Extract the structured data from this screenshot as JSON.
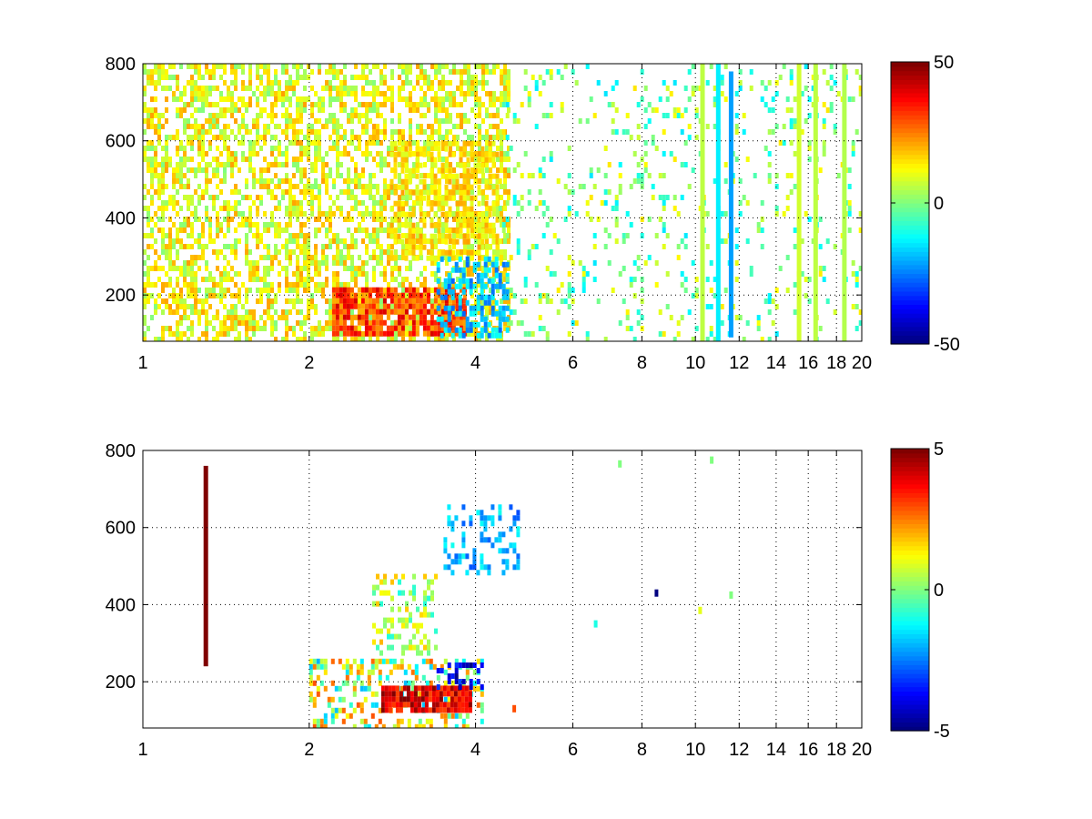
{
  "chart_data": [
    {
      "type": "heatmap",
      "title": "",
      "xlabel": "",
      "ylabel": "",
      "x_scale": "log",
      "xlim": [
        1,
        20
      ],
      "ylim": [
        80,
        800
      ],
      "x_ticks": [
        1,
        2,
        4,
        6,
        8,
        10,
        12,
        14,
        16,
        18,
        20
      ],
      "x_tick_labels": [
        "1",
        "2",
        "4",
        "6",
        "8",
        "10",
        "12",
        "14",
        "16",
        "18",
        "20"
      ],
      "y_ticks": [
        200,
        400,
        600,
        800
      ],
      "y_tick_labels": [
        "200",
        "400",
        "600",
        "800"
      ],
      "grid": true,
      "colormap": "jet",
      "clim": [
        -50,
        50
      ],
      "colorbar": {
        "placement": "right",
        "ticks": [
          -50,
          0,
          50
        ],
        "tick_labels": [
          "-50",
          "0",
          "50"
        ]
      },
      "regions": [
        {
          "x": [
            1,
            4.6
          ],
          "y": [
            80,
            800
          ],
          "density": 0.55,
          "value_range": [
            0,
            22
          ]
        },
        {
          "x": [
            2.2,
            3.8
          ],
          "y": [
            100,
            220
          ],
          "density": 0.8,
          "value_range": [
            20,
            42
          ]
        },
        {
          "x": [
            2.8,
            4.4
          ],
          "y": [
            300,
            600
          ],
          "density": 0.55,
          "value_range": [
            8,
            22
          ]
        },
        {
          "x": [
            3.4,
            4.6
          ],
          "y": [
            100,
            300
          ],
          "density": 0.5,
          "value_range": [
            -28,
            -10
          ]
        },
        {
          "x": [
            4.4,
            20
          ],
          "y": [
            80,
            800
          ],
          "density": 0.12,
          "value_range": [
            -15,
            15
          ]
        }
      ],
      "columns": [
        {
          "x": 10.3,
          "y": [
            80,
            800
          ],
          "value": 6
        },
        {
          "x": 11.0,
          "y": [
            80,
            800
          ],
          "value": -14
        },
        {
          "x": 11.6,
          "y": [
            90,
            780
          ],
          "value": -22
        },
        {
          "x": 15.4,
          "y": [
            80,
            800
          ],
          "value": 8
        },
        {
          "x": 16.5,
          "y": [
            80,
            800
          ],
          "value": 6
        },
        {
          "x": 18.6,
          "y": [
            80,
            800
          ],
          "value": 5
        }
      ]
    },
    {
      "type": "heatmap",
      "title": "",
      "xlabel": "",
      "ylabel": "",
      "x_scale": "log",
      "xlim": [
        1,
        20
      ],
      "ylim": [
        80,
        800
      ],
      "x_ticks": [
        1,
        2,
        4,
        6,
        8,
        10,
        12,
        14,
        16,
        18,
        20
      ],
      "x_tick_labels": [
        "1",
        "2",
        "4",
        "6",
        "8",
        "10",
        "12",
        "14",
        "16",
        "18",
        "20"
      ],
      "y_ticks": [
        200,
        400,
        600,
        800
      ],
      "y_tick_labels": [
        "200",
        "400",
        "600",
        "800"
      ],
      "grid": true,
      "colormap": "jet",
      "clim": [
        -5,
        5
      ],
      "colorbar": {
        "placement": "right",
        "ticks": [
          -5,
          0,
          5
        ],
        "tick_labels": [
          "-5",
          "0",
          "5"
        ]
      },
      "regions": [
        {
          "x": [
            2.0,
            4.1
          ],
          "y": [
            80,
            260
          ],
          "density": 0.35,
          "value_range": [
            -2,
            3
          ]
        },
        {
          "x": [
            2.7,
            3.9
          ],
          "y": [
            130,
            190
          ],
          "density": 0.85,
          "value_range": [
            3,
            5
          ]
        },
        {
          "x": [
            3.4,
            4.1
          ],
          "y": [
            180,
            250
          ],
          "density": 0.4,
          "value_range": [
            -5,
            -3
          ]
        },
        {
          "x": [
            2.6,
            3.4
          ],
          "y": [
            280,
            480
          ],
          "density": 0.25,
          "value_range": [
            -1,
            2
          ]
        },
        {
          "x": [
            3.5,
            4.8
          ],
          "y": [
            480,
            660
          ],
          "density": 0.35,
          "value_range": [
            -3,
            -1
          ]
        }
      ],
      "columns": [
        {
          "x": 1.3,
          "y": [
            240,
            760
          ],
          "value": 5
        }
      ],
      "points": [
        {
          "x": 4.7,
          "y": 130,
          "value": 3
        },
        {
          "x": 6.6,
          "y": 350,
          "value": -1
        },
        {
          "x": 8.5,
          "y": 430,
          "value": -5
        },
        {
          "x": 10.2,
          "y": 385,
          "value": 1
        },
        {
          "x": 10.7,
          "y": 775,
          "value": 0
        },
        {
          "x": 11.6,
          "y": 425,
          "value": 0
        },
        {
          "x": 7.3,
          "y": 765,
          "value": 0
        }
      ]
    }
  ]
}
